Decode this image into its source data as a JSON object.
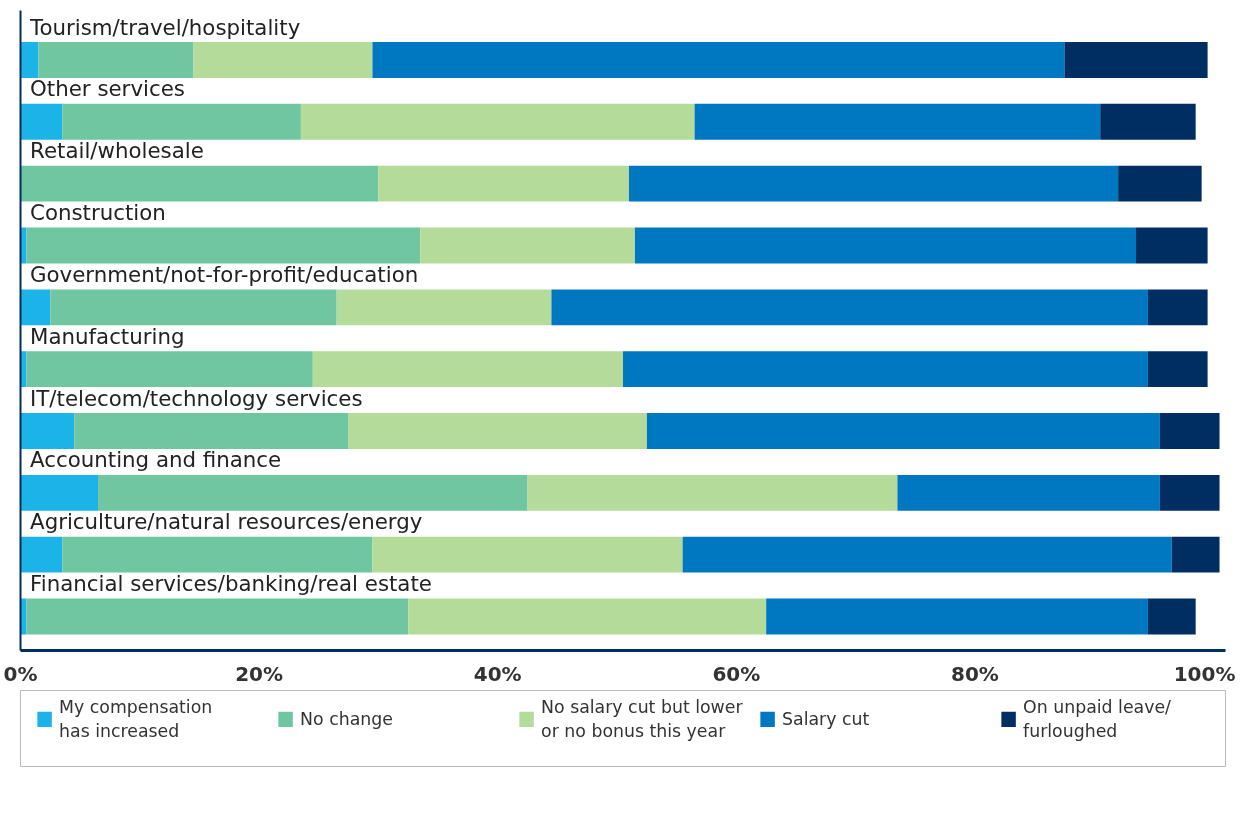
{
  "chart_data": {
    "type": "bar",
    "orientation": "horizontal",
    "stacked": true,
    "categories": [
      "Tourism/travel/hospitality",
      "Other services",
      "Retail/wholesale",
      "Construction",
      "Government/not-for-profit/education",
      "Manufacturing",
      "IT/telecom/technology services",
      "Accounting and finance",
      "Agriculture/natural resources/energy",
      "Financial services/banking/real estate"
    ],
    "series": [
      {
        "name": "My compensation\nhas increased",
        "color": "#1cb4e8",
        "values": [
          1.5,
          3.5,
          0,
          0.5,
          2.5,
          0.5,
          4.5,
          6.5,
          3.5,
          0.5
        ]
      },
      {
        "name": "No change",
        "color": "#6fc6a0",
        "values": [
          13,
          20,
          30,
          33,
          24,
          24,
          23,
          36,
          26,
          32
        ]
      },
      {
        "name": "No salary cut but lower\nor no bonus this year",
        "color": "#b5db9a",
        "values": [
          15,
          33,
          21,
          18,
          18,
          26,
          25,
          31,
          26,
          30
        ]
      },
      {
        "name": "Salary cut",
        "color": "#0077c1",
        "values": [
          58,
          34,
          41,
          42,
          50,
          44,
          43,
          22,
          41,
          32
        ]
      },
      {
        "name": "On unpaid leave/\nfurloughed",
        "color": "#002d62",
        "values": [
          12,
          8,
          7,
          6,
          5,
          5,
          5,
          5,
          4,
          4
        ]
      }
    ],
    "xlim": [
      0,
      101
    ],
    "xticks": [
      {
        "value": 0,
        "label": "0%"
      },
      {
        "value": 20,
        "label": "20%"
      },
      {
        "value": 40,
        "label": "40%"
      },
      {
        "value": 60,
        "label": "60%"
      },
      {
        "value": 80,
        "label": "80%"
      },
      {
        "value": 100,
        "label": "100%"
      }
    ],
    "tick_labels": "x",
    "grid": false,
    "legend": "bottom"
  }
}
